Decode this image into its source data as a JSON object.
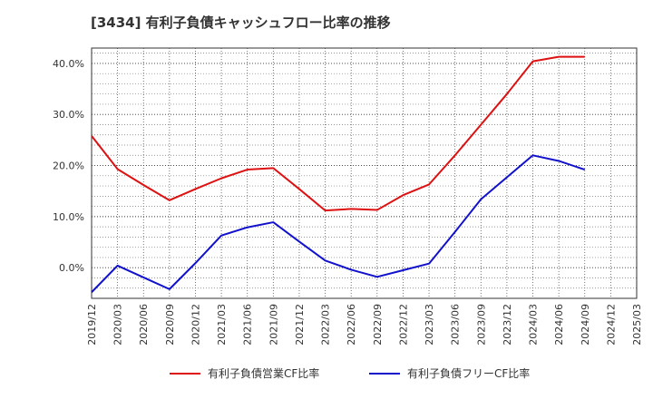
{
  "chart_data": {
    "type": "line",
    "title": "[3434]  有利子負債キャッシュフロー比率の推移",
    "x": [
      "2019/12",
      "2020/03",
      "2020/06",
      "2020/09",
      "2020/12",
      "2021/03",
      "2021/06",
      "2021/09",
      "2021/12",
      "2022/03",
      "2022/06",
      "2022/09",
      "2022/12",
      "2023/03",
      "2023/06",
      "2023/09",
      "2023/12",
      "2024/03",
      "2024/06",
      "2024/09",
      "2024/12",
      "2025/03"
    ],
    "y_ticks": [
      "0.0%",
      "10.0%",
      "20.0%",
      "30.0%",
      "40.0%"
    ],
    "ylim": [
      -6,
      43
    ],
    "grid": true,
    "legend_position": "bottom",
    "series": [
      {
        "name": "有利子負債営業CF比率",
        "color": "#dd1111",
        "values": [
          25.8,
          19.3,
          16.2,
          13.2,
          15.4,
          17.5,
          19.2,
          19.5,
          15.4,
          11.2,
          11.5,
          11.3,
          14.2,
          16.3,
          22.0,
          28.0,
          34.0,
          40.4,
          41.3,
          41.3,
          null,
          null
        ]
      },
      {
        "name": "有利子負債フリーCF比率",
        "color": "#1111cc",
        "values": [
          -4.8,
          0.4,
          -1.9,
          -4.2,
          0.9,
          6.3,
          7.9,
          8.9,
          5.1,
          1.4,
          -0.4,
          -1.8,
          -0.5,
          0.8,
          7.0,
          13.4,
          17.7,
          22.0,
          20.9,
          19.2,
          null,
          null
        ]
      }
    ]
  }
}
